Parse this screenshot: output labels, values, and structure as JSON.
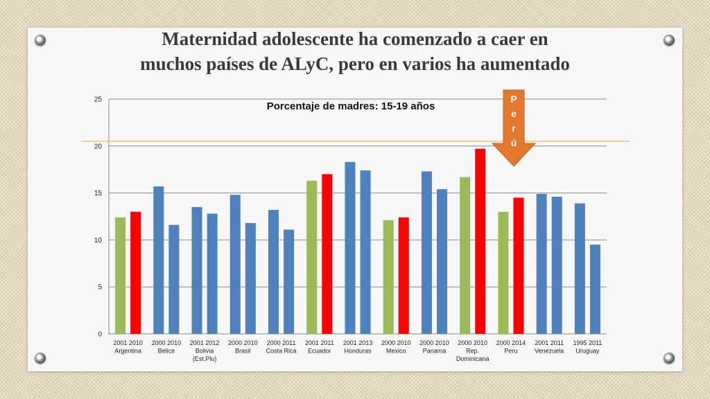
{
  "slide": {
    "title_line1": "Maternidad adolescente ha comenzado a caer en",
    "title_line2": "muchos países de ALyC, pero en varios ha aumentado"
  },
  "colors": {
    "green": "#9bbb59",
    "red": "#ff0000",
    "blue": "#4f81bd",
    "refline": "#f5c27a",
    "arrow": "#e2772d"
  },
  "annotation": {
    "arrow_letters": [
      "P",
      "e",
      "r",
      "ú"
    ],
    "reference_value": 20.5
  },
  "chart_data": {
    "type": "bar",
    "title": "Porcentaje de madres: 15-19 años",
    "ylim": [
      0,
      25
    ],
    "yticks": [
      0,
      5,
      10,
      15,
      20,
      25
    ],
    "grid": true,
    "groups": [
      {
        "country": [
          "Argentina"
        ],
        "years": [
          "2001",
          "2010"
        ],
        "values": [
          12.4,
          13.0
        ],
        "colors": [
          "green",
          "red"
        ]
      },
      {
        "country": [
          "Belice"
        ],
        "years": [
          "2000",
          "2010"
        ],
        "values": [
          15.7,
          11.6
        ],
        "colors": [
          "blue",
          "blue"
        ]
      },
      {
        "country": [
          "Bolivia",
          "(Est.Plu)"
        ],
        "years": [
          "2001",
          "2012"
        ],
        "values": [
          13.5,
          12.8
        ],
        "colors": [
          "blue",
          "blue"
        ]
      },
      {
        "country": [
          "Brasil"
        ],
        "years": [
          "2000",
          "2010"
        ],
        "values": [
          14.8,
          11.8
        ],
        "colors": [
          "blue",
          "blue"
        ]
      },
      {
        "country": [
          "Costa Rica"
        ],
        "years": [
          "2000",
          "2011"
        ],
        "values": [
          13.2,
          11.1
        ],
        "colors": [
          "blue",
          "blue"
        ]
      },
      {
        "country": [
          "Ecuador"
        ],
        "years": [
          "2001",
          "2011"
        ],
        "values": [
          16.3,
          17.0
        ],
        "colors": [
          "green",
          "red"
        ]
      },
      {
        "country": [
          "Honduras"
        ],
        "years": [
          "2001",
          "2013"
        ],
        "values": [
          18.3,
          17.4
        ],
        "colors": [
          "blue",
          "blue"
        ]
      },
      {
        "country": [
          "Mexico"
        ],
        "years": [
          "2000",
          "2010"
        ],
        "values": [
          12.1,
          12.4
        ],
        "colors": [
          "green",
          "red"
        ]
      },
      {
        "country": [
          "Panama"
        ],
        "years": [
          "2000",
          "2010"
        ],
        "values": [
          17.3,
          15.4
        ],
        "colors": [
          "blue",
          "blue"
        ]
      },
      {
        "country": [
          "Rep.",
          "Dominicana"
        ],
        "years": [
          "2000",
          "2010"
        ],
        "values": [
          16.7,
          19.7
        ],
        "colors": [
          "green",
          "red"
        ]
      },
      {
        "country": [
          "Peru"
        ],
        "years": [
          "2000",
          "2014"
        ],
        "values": [
          13.0,
          14.5
        ],
        "colors": [
          "green",
          "red"
        ]
      },
      {
        "country": [
          "Venezuela"
        ],
        "years": [
          "2001",
          "2011"
        ],
        "values": [
          14.9,
          14.6
        ],
        "colors": [
          "blue",
          "blue"
        ]
      },
      {
        "country": [
          "Uruguay"
        ],
        "years": [
          "1995",
          "2011"
        ],
        "values": [
          13.9,
          9.5
        ],
        "colors": [
          "blue",
          "blue"
        ]
      }
    ]
  }
}
